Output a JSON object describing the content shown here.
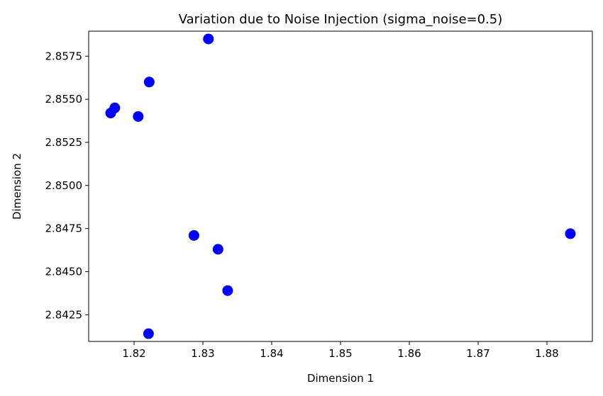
{
  "chart_data": {
    "type": "scatter",
    "title": "Variation due to Noise Injection (sigma_noise=0.5)",
    "xlabel": "Dimension 1",
    "ylabel": "Dimension 2",
    "xlim": [
      1.8134,
      1.8866
    ],
    "ylim": [
      2.84095,
      2.85895
    ],
    "xticks": [
      1.82,
      1.83,
      1.84,
      1.85,
      1.86,
      1.87,
      1.88
    ],
    "xtick_labels": [
      "1.82",
      "1.83",
      "1.84",
      "1.85",
      "1.86",
      "1.87",
      "1.88"
    ],
    "yticks": [
      2.8425,
      2.845,
      2.8475,
      2.85,
      2.8525,
      2.855,
      2.8575
    ],
    "ytick_labels": [
      "2.8425",
      "2.8450",
      "2.8475",
      "2.8500",
      "2.8525",
      "2.8550",
      "2.8575"
    ],
    "grid": false,
    "legend": false,
    "marker_color": "#0000ff",
    "points": [
      {
        "x": 1.8308,
        "y": 2.8585
      },
      {
        "x": 1.8222,
        "y": 2.856
      },
      {
        "x": 1.8172,
        "y": 2.8545
      },
      {
        "x": 1.8166,
        "y": 2.8542
      },
      {
        "x": 1.8206,
        "y": 2.854
      },
      {
        "x": 1.8287,
        "y": 2.8471
      },
      {
        "x": 1.8834,
        "y": 2.8472
      },
      {
        "x": 1.8322,
        "y": 2.8463
      },
      {
        "x": 1.8336,
        "y": 2.8439
      },
      {
        "x": 1.8221,
        "y": 2.8414
      }
    ]
  }
}
